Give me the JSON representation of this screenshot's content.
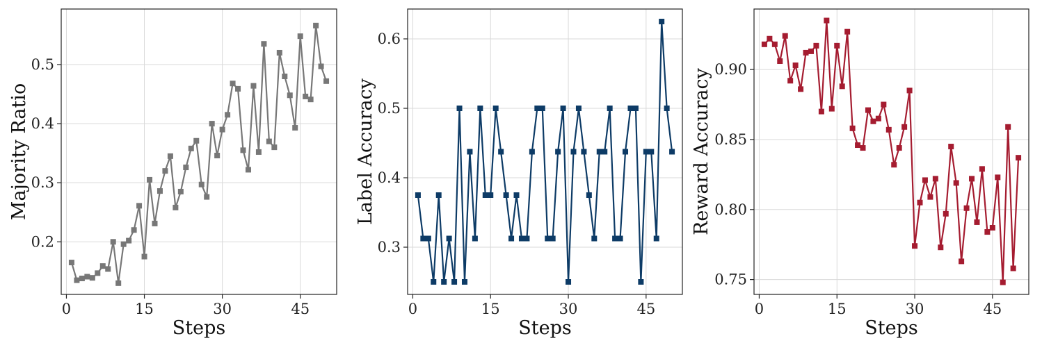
{
  "chart_data": [
    {
      "type": "line",
      "xlabel": "Steps",
      "ylabel": "Majority Ratio",
      "xlim": [
        -1,
        52
      ],
      "ylim": [
        0.111,
        0.594
      ],
      "xticks": [
        0,
        15,
        30,
        45
      ],
      "yticks": [
        0.2,
        0.3,
        0.4,
        0.5
      ],
      "ytick_labels": [
        "0.2",
        "0.3",
        "0.4",
        "0.5"
      ],
      "grid": true,
      "color": "#777777",
      "marker": "square",
      "x": [
        1,
        2,
        3,
        4,
        5,
        6,
        7,
        8,
        9,
        10,
        11,
        12,
        13,
        14,
        15,
        16,
        17,
        18,
        19,
        20,
        21,
        22,
        23,
        24,
        25,
        26,
        27,
        28,
        29,
        30,
        31,
        32,
        33,
        34,
        35,
        36,
        37,
        38,
        39,
        40,
        41,
        42,
        43,
        44,
        45,
        46,
        47,
        48,
        49,
        50
      ],
      "y": [
        0.165,
        0.135,
        0.138,
        0.141,
        0.139,
        0.147,
        0.159,
        0.154,
        0.2,
        0.13,
        0.196,
        0.202,
        0.22,
        0.261,
        0.175,
        0.305,
        0.231,
        0.286,
        0.32,
        0.345,
        0.258,
        0.285,
        0.326,
        0.358,
        0.371,
        0.297,
        0.276,
        0.4,
        0.346,
        0.39,
        0.415,
        0.468,
        0.459,
        0.355,
        0.322,
        0.464,
        0.352,
        0.535,
        0.37,
        0.36,
        0.52,
        0.48,
        0.448,
        0.393,
        0.548,
        0.446,
        0.441,
        0.566,
        0.497,
        0.472
      ]
    },
    {
      "type": "line",
      "xlabel": "Steps",
      "ylabel": "Label Accuracy",
      "xlim": [
        -1,
        52
      ],
      "ylim": [
        0.232,
        0.643
      ],
      "xticks": [
        0,
        15,
        30,
        45
      ],
      "yticks": [
        0.3,
        0.4,
        0.5,
        0.6
      ],
      "ytick_labels": [
        "0.3",
        "0.4",
        "0.5",
        "0.6"
      ],
      "grid": true,
      "color": "#0d3b66",
      "marker": "square",
      "x": [
        1,
        2,
        3,
        4,
        5,
        6,
        7,
        8,
        9,
        10,
        11,
        12,
        13,
        14,
        15,
        16,
        17,
        18,
        19,
        20,
        21,
        22,
        23,
        24,
        25,
        26,
        27,
        28,
        29,
        30,
        31,
        32,
        33,
        34,
        35,
        36,
        37,
        38,
        39,
        40,
        41,
        42,
        43,
        44,
        45,
        46,
        47,
        48,
        49,
        50
      ],
      "y": [
        0.375,
        0.3125,
        0.3125,
        0.25,
        0.375,
        0.25,
        0.3125,
        0.25,
        0.5,
        0.25,
        0.4375,
        0.3125,
        0.5,
        0.375,
        0.375,
        0.5,
        0.4375,
        0.375,
        0.3125,
        0.375,
        0.3125,
        0.3125,
        0.4375,
        0.5,
        0.5,
        0.3125,
        0.3125,
        0.4375,
        0.5,
        0.25,
        0.4375,
        0.5,
        0.4375,
        0.375,
        0.3125,
        0.4375,
        0.4375,
        0.5,
        0.3125,
        0.3125,
        0.4375,
        0.5,
        0.5,
        0.25,
        0.4375,
        0.4375,
        0.3125,
        0.625,
        0.5,
        0.4375
      ]
    },
    {
      "type": "line",
      "xlabel": "Steps",
      "ylabel": "Reward Accuracy",
      "xlim": [
        -1,
        52
      ],
      "ylim": [
        0.7394,
        0.9432
      ],
      "xticks": [
        0,
        15,
        30,
        45
      ],
      "yticks": [
        0.75,
        0.8,
        0.85,
        0.9
      ],
      "ytick_labels": [
        "0.75",
        "0.80",
        "0.85",
        "0.90"
      ],
      "grid": true,
      "color": "#a51c30",
      "marker": "square",
      "x": [
        1,
        2,
        3,
        4,
        5,
        6,
        7,
        8,
        9,
        10,
        11,
        12,
        13,
        14,
        15,
        16,
        17,
        18,
        19,
        20,
        21,
        22,
        23,
        24,
        25,
        26,
        27,
        28,
        29,
        30,
        31,
        32,
        33,
        34,
        35,
        36,
        37,
        38,
        39,
        40,
        41,
        42,
        43,
        44,
        45,
        46,
        47,
        48,
        49,
        50
      ],
      "y": [
        0.918,
        0.922,
        0.918,
        0.906,
        0.924,
        0.892,
        0.903,
        0.886,
        0.912,
        0.913,
        0.917,
        0.87,
        0.935,
        0.872,
        0.917,
        0.888,
        0.927,
        0.858,
        0.846,
        0.844,
        0.871,
        0.863,
        0.865,
        0.875,
        0.857,
        0.832,
        0.844,
        0.859,
        0.885,
        0.774,
        0.805,
        0.821,
        0.809,
        0.822,
        0.773,
        0.797,
        0.845,
        0.819,
        0.763,
        0.801,
        0.822,
        0.791,
        0.829,
        0.784,
        0.787,
        0.823,
        0.748,
        0.859,
        0.758,
        0.837
      ]
    }
  ]
}
